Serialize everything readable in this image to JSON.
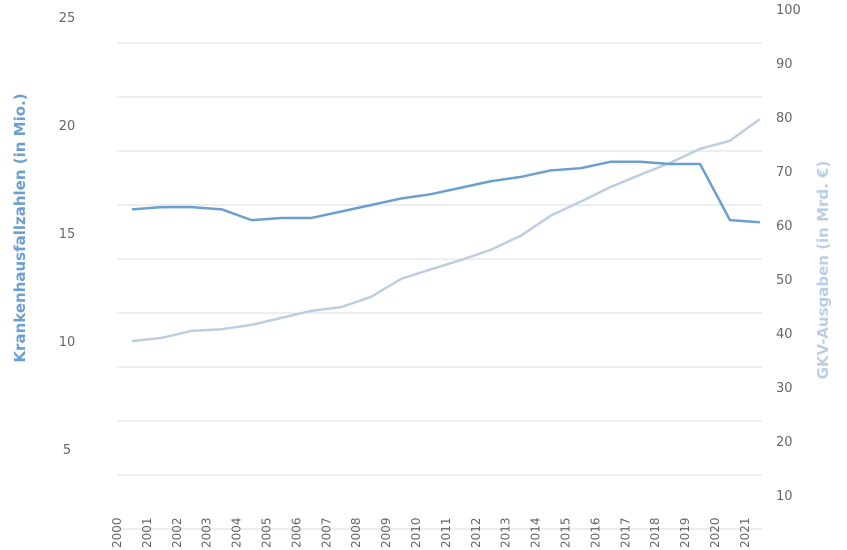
{
  "chart_data": {
    "type": "line",
    "categories": [
      "2000",
      "2001",
      "2002",
      "2003",
      "2004",
      "2005",
      "2006",
      "2007",
      "2008",
      "2009",
      "2010",
      "2011",
      "2012",
      "2013",
      "2014",
      "2015",
      "2016",
      "2017",
      "2018",
      "2019",
      "2020",
      "2021"
    ],
    "y_label": "Krankenhausfallzahlen (in Mio.)",
    "y2_label": "GKV-Ausgaben (in Mrd. €)",
    "ylim": [
      2.5,
      25
    ],
    "yticks": [
      5,
      10,
      15,
      20,
      25
    ],
    "y2lim": [
      10,
      100
    ],
    "y2ticks": [
      10,
      20,
      30,
      40,
      50,
      60,
      70,
      80,
      90,
      100
    ],
    "grid": true,
    "series": [
      {
        "name": "Krankenhausfallzahlen",
        "color": "#6b9fcf",
        "axis": "y",
        "values": [
          17.3,
          17.4,
          17.4,
          17.3,
          16.8,
          16.9,
          16.9,
          17.2,
          17.5,
          17.8,
          18.0,
          18.3,
          18.6,
          18.8,
          19.1,
          19.2,
          19.5,
          19.5,
          19.4,
          19.4,
          16.8,
          16.7
        ]
      },
      {
        "name": "GKV-Ausgaben",
        "color": "#bccfe2",
        "axis": "y2",
        "values": [
          44.8,
          45.4,
          46.7,
          47.0,
          47.8,
          49.1,
          50.4,
          51.1,
          53.0,
          56.3,
          58.1,
          59.8,
          61.7,
          64.3,
          68.0,
          70.6,
          73.3,
          75.6,
          77.8,
          80.4,
          81.9,
          85.9
        ]
      }
    ]
  }
}
